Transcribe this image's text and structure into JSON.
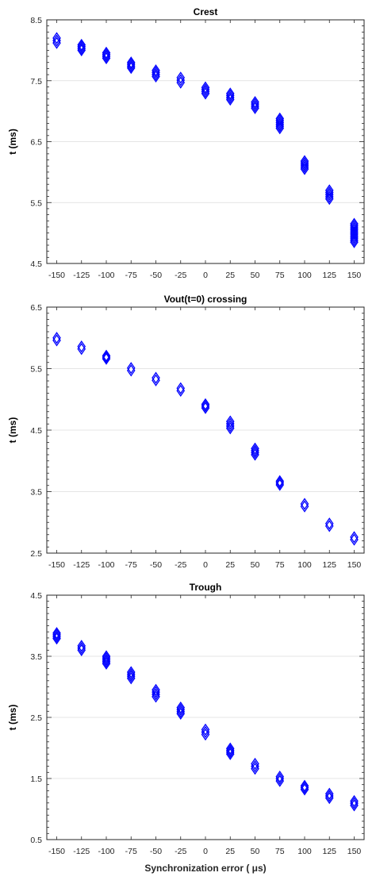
{
  "chart_data": [
    {
      "type": "scatter",
      "title": "Crest",
      "ylabel": "t (ms)",
      "xlabel": "",
      "ylim": [
        4.5,
        8.5
      ],
      "yticks": [
        "4.5",
        "5.5",
        "6.5",
        "7.5",
        "8.5"
      ],
      "xlim": [
        -160,
        160
      ],
      "xticks": [
        "-150",
        "-125",
        "-100",
        "-75",
        "-50",
        "-25",
        "0",
        "25",
        "50",
        "75",
        "100",
        "125",
        "150"
      ],
      "grid": "horizontal",
      "marker": "diamond",
      "series": [
        {
          "x": [
            -150,
            -125,
            -100,
            -75,
            -50,
            -25,
            0,
            25,
            50,
            75,
            100,
            125,
            150
          ],
          "y_min": [
            8.12,
            8.0,
            7.87,
            7.71,
            7.57,
            7.47,
            7.29,
            7.19,
            7.05,
            6.72,
            6.05,
            5.56,
            4.85
          ],
          "y_max": [
            8.2,
            8.09,
            7.96,
            7.8,
            7.67,
            7.55,
            7.39,
            7.29,
            7.15,
            6.88,
            6.18,
            5.7,
            5.15
          ]
        }
      ]
    },
    {
      "type": "scatter",
      "title": "Vout(t=0) crossing",
      "ylabel": "t (ms)",
      "xlabel": "",
      "ylim": [
        2.5,
        6.5
      ],
      "yticks": [
        "2.5",
        "3.5",
        "4.5",
        "5.5",
        "6.5"
      ],
      "xlim": [
        -160,
        160
      ],
      "xticks": [
        "-150",
        "-125",
        "-100",
        "-75",
        "-50",
        "-25",
        "0",
        "25",
        "50",
        "75",
        "100",
        "125",
        "150"
      ],
      "grid": "horizontal",
      "marker": "diamond",
      "series": [
        {
          "x": [
            -150,
            -125,
            -100,
            -75,
            -50,
            -25,
            0,
            25,
            50,
            75,
            100,
            125,
            150
          ],
          "y_min": [
            5.96,
            5.82,
            5.66,
            5.47,
            5.31,
            5.14,
            4.86,
            4.53,
            4.1,
            3.61,
            3.26,
            2.94,
            2.72
          ],
          "y_max": [
            6.0,
            5.86,
            5.71,
            5.51,
            5.35,
            5.18,
            4.92,
            4.64,
            4.2,
            3.67,
            3.3,
            2.98,
            2.76
          ]
        }
      ]
    },
    {
      "type": "scatter",
      "title": "Trough",
      "ylabel": "t (ms)",
      "xlabel": "Synchronization error ( μs)",
      "ylim": [
        0.5,
        4.5
      ],
      "yticks": [
        "0.5",
        "1.5",
        "2.5",
        "3.5",
        "4.5"
      ],
      "xlim": [
        -160,
        160
      ],
      "xticks": [
        "-150",
        "-125",
        "-100",
        "-75",
        "-50",
        "-25",
        "0",
        "25",
        "50",
        "75",
        "100",
        "125",
        "150"
      ],
      "grid": "horizontal",
      "marker": "diamond",
      "series": [
        {
          "x": [
            -150,
            -125,
            -100,
            -75,
            -50,
            -25,
            0,
            25,
            50,
            75,
            100,
            125,
            150
          ],
          "y_min": [
            3.79,
            3.6,
            3.38,
            3.14,
            2.84,
            2.56,
            2.22,
            1.9,
            1.66,
            1.46,
            1.32,
            1.18,
            1.06
          ],
          "y_max": [
            3.88,
            3.67,
            3.5,
            3.24,
            2.95,
            2.66,
            2.3,
            1.99,
            1.74,
            1.53,
            1.38,
            1.25,
            1.13
          ]
        }
      ]
    }
  ],
  "colors": {
    "marker": "#0000ff",
    "axis": "#262626",
    "grid": "#dcdcdc"
  }
}
